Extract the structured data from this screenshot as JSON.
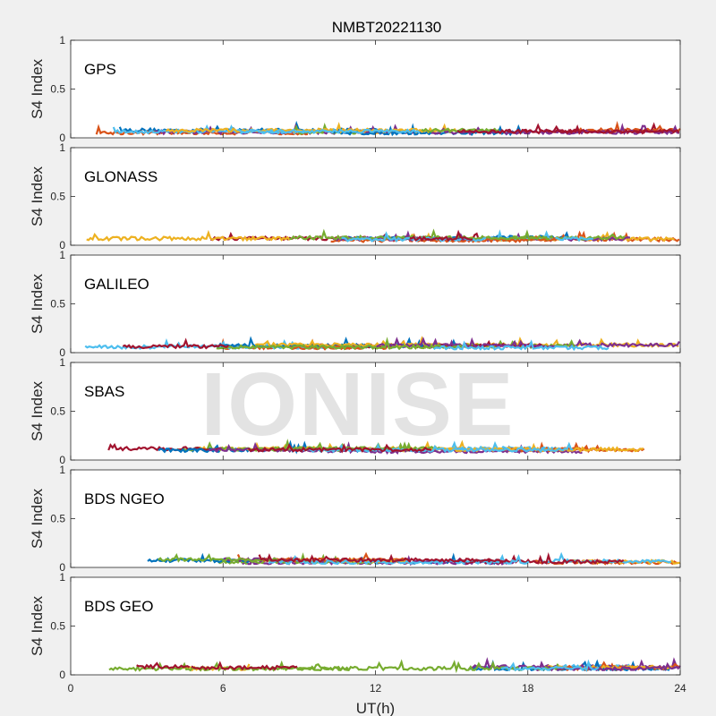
{
  "title": "NMBT20221130",
  "watermark": "IONISE",
  "chart_data": [
    {
      "type": "line",
      "panel": "GPS",
      "ylabel": "S4 Index",
      "xlabel": "",
      "xlim": [
        0,
        24
      ],
      "ylim": [
        0,
        1
      ],
      "yticks": [
        "0",
        "0.5",
        "1"
      ],
      "typical_level": 0.07
    },
    {
      "type": "line",
      "panel": "GLONASS",
      "ylabel": "S4 Index",
      "xlabel": "",
      "xlim": [
        0,
        24
      ],
      "ylim": [
        0,
        1
      ],
      "yticks": [
        "0",
        "0.5",
        "1"
      ],
      "typical_level": 0.07
    },
    {
      "type": "line",
      "panel": "GALILEO",
      "ylabel": "S4 Index",
      "xlabel": "",
      "xlim": [
        0,
        24
      ],
      "ylim": [
        0,
        1
      ],
      "yticks": [
        "0",
        "0.5",
        "1"
      ],
      "typical_level": 0.07
    },
    {
      "type": "line",
      "panel": "SBAS",
      "ylabel": "S4 Index",
      "xlabel": "",
      "xlim": [
        0,
        24
      ],
      "ylim": [
        0,
        1
      ],
      "yticks": [
        "0",
        "0.5",
        "1"
      ],
      "typical_level": 0.11
    },
    {
      "type": "line",
      "panel": "BDS NGEO",
      "ylabel": "S4 Index",
      "xlabel": "",
      "xlim": [
        0,
        24
      ],
      "ylim": [
        0,
        1
      ],
      "yticks": [
        "0",
        "0.5",
        "1"
      ],
      "typical_level": 0.07
    },
    {
      "type": "line",
      "panel": "BDS GEO",
      "ylabel": "S4 Index",
      "xlabel": "UT(h)",
      "xlim": [
        0,
        24
      ],
      "ylim": [
        0,
        1
      ],
      "yticks": [
        "0",
        "0.5",
        "1"
      ],
      "xticks": [
        "0",
        "6",
        "12",
        "18",
        "24"
      ],
      "typical_level": 0.08
    }
  ],
  "series_colors": [
    "#0072bd",
    "#d95319",
    "#edb120",
    "#7e2f8e",
    "#77ac30",
    "#4dbeee",
    "#a2142f"
  ]
}
